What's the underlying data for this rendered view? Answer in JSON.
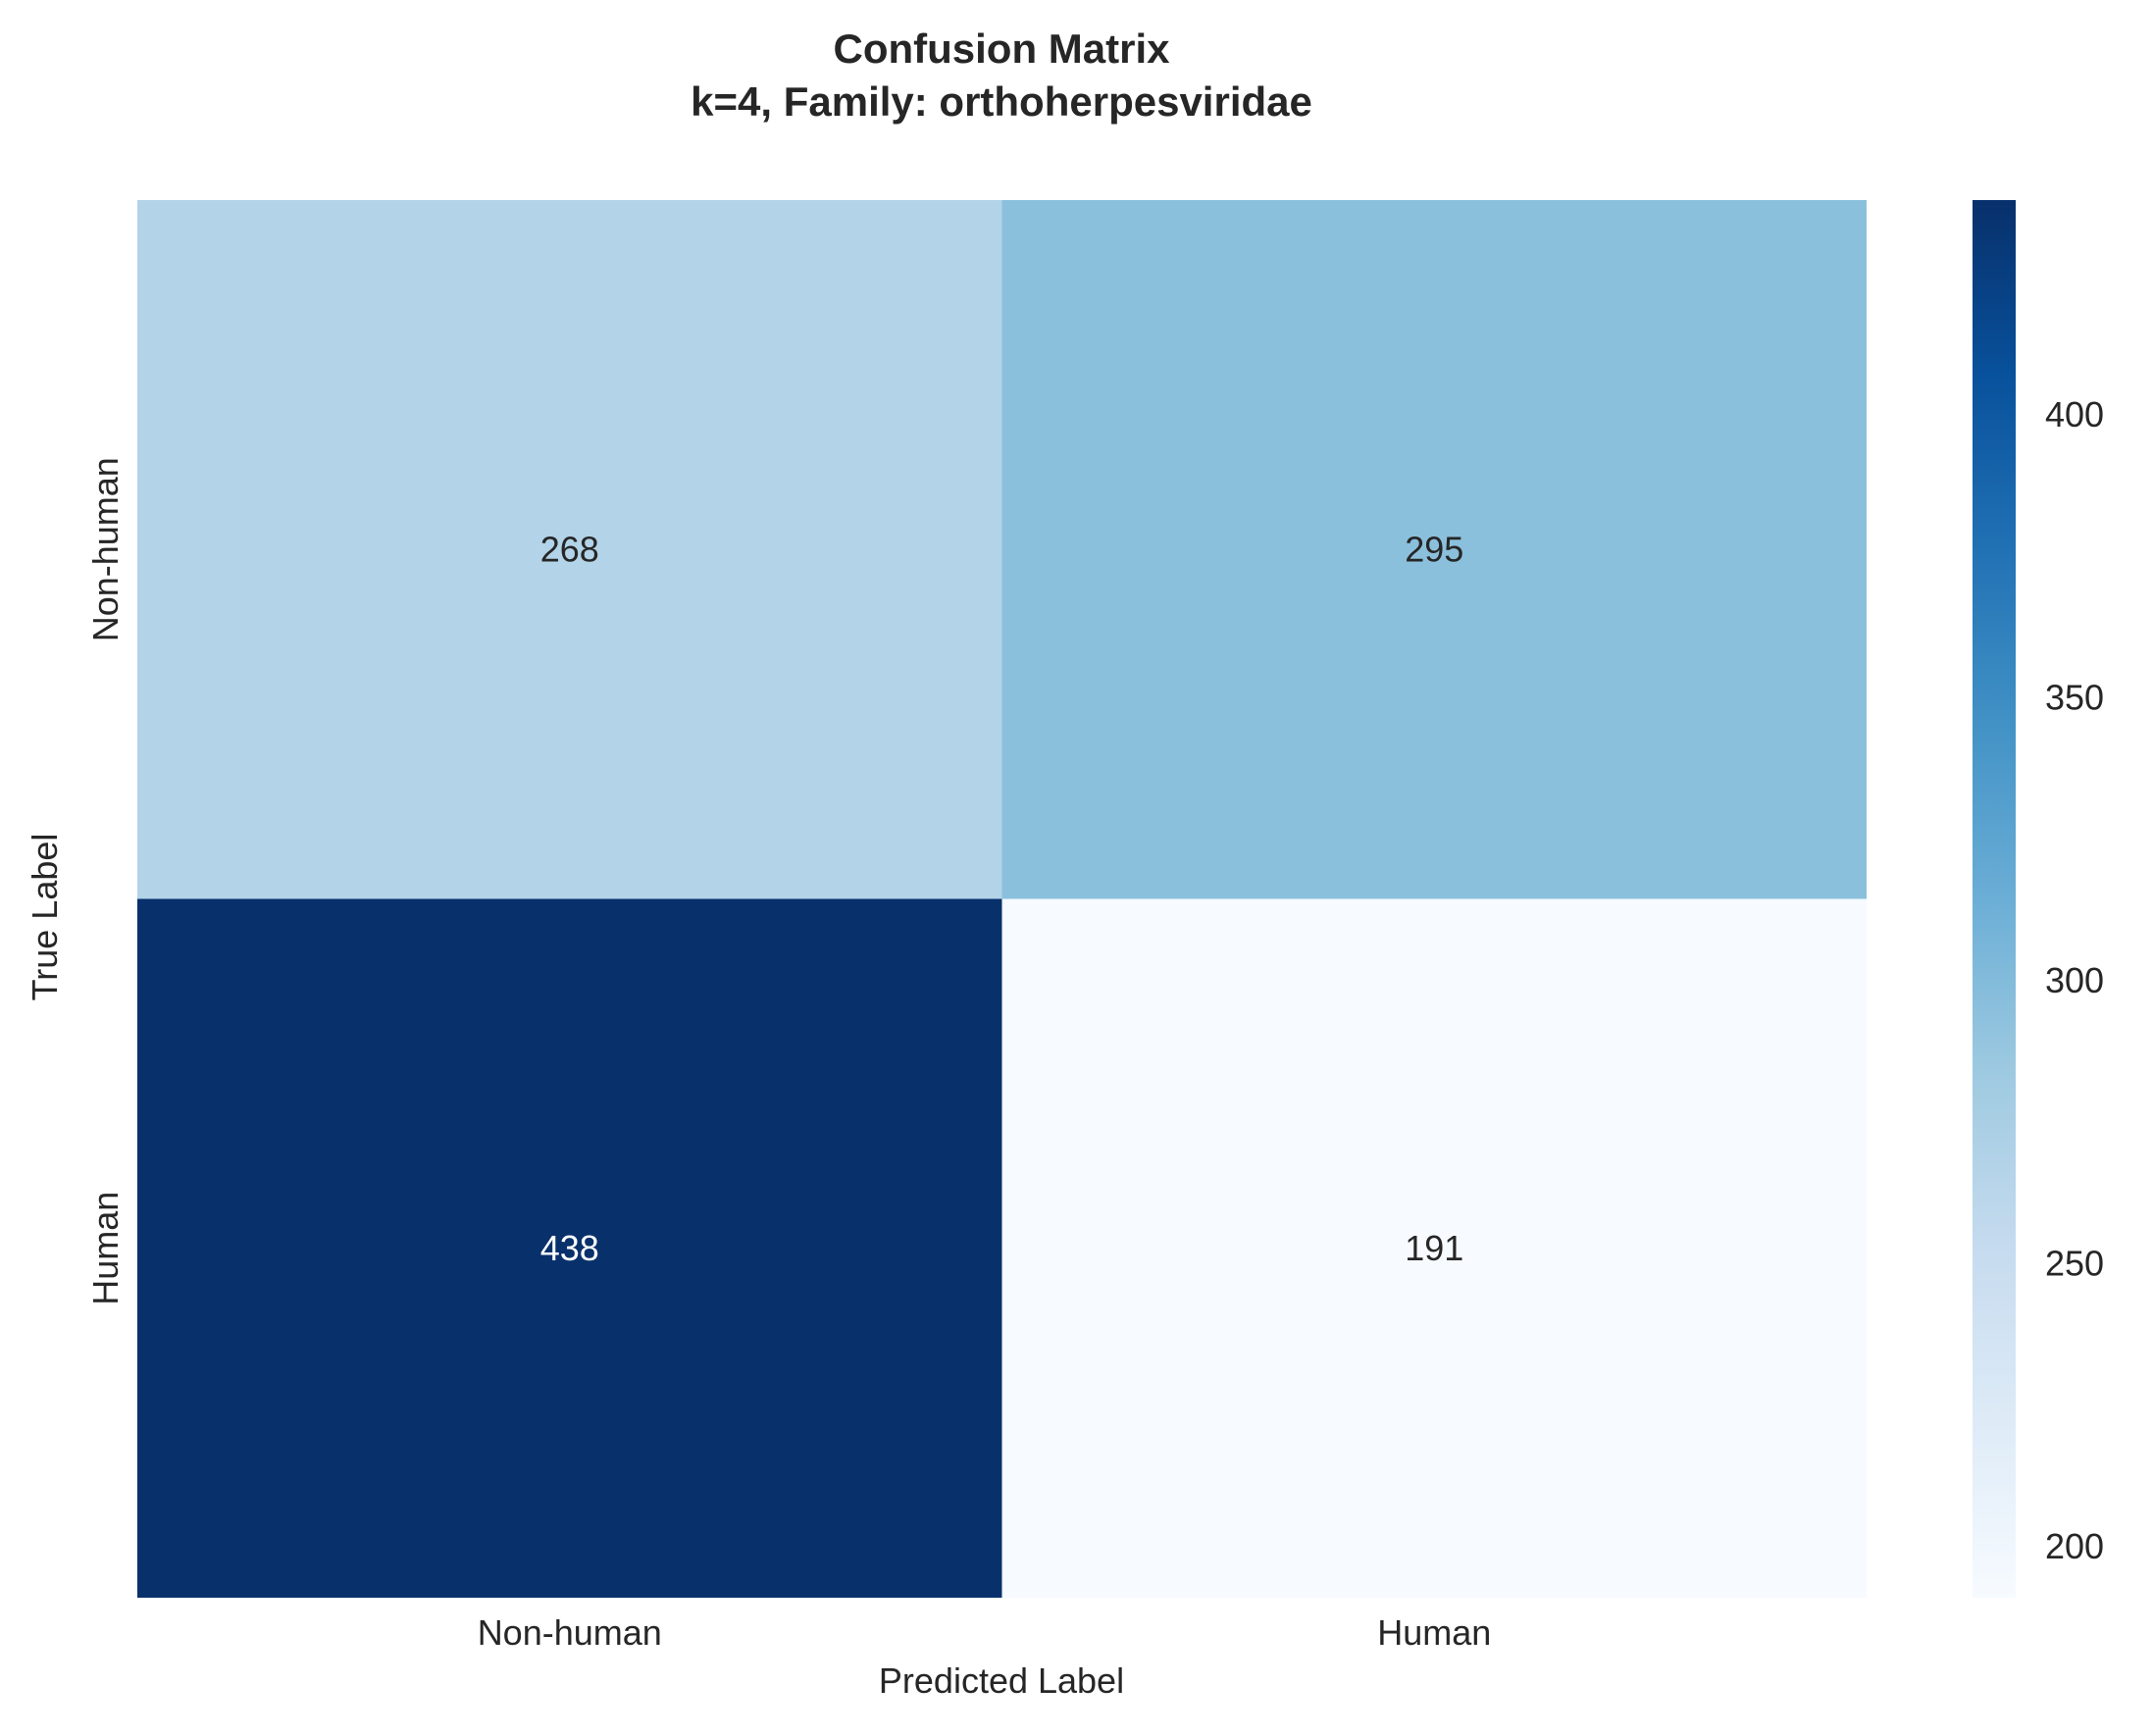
{
  "chart_data": {
    "type": "heatmap",
    "title": [
      "Confusion Matrix",
      "k=4, Family: orthoherpesviridae"
    ],
    "xlabel": "Predicted Label",
    "ylabel": "True Label",
    "x_categories": [
      "Non-human",
      "Human"
    ],
    "y_categories": [
      "Non-human",
      "Human"
    ],
    "values": [
      [
        268,
        295
      ],
      [
        438,
        191
      ]
    ],
    "colormap": "Blues",
    "color_range": [
      191,
      438
    ],
    "colorbar_ticks": [
      200,
      250,
      300,
      350,
      400
    ],
    "grid": false
  }
}
